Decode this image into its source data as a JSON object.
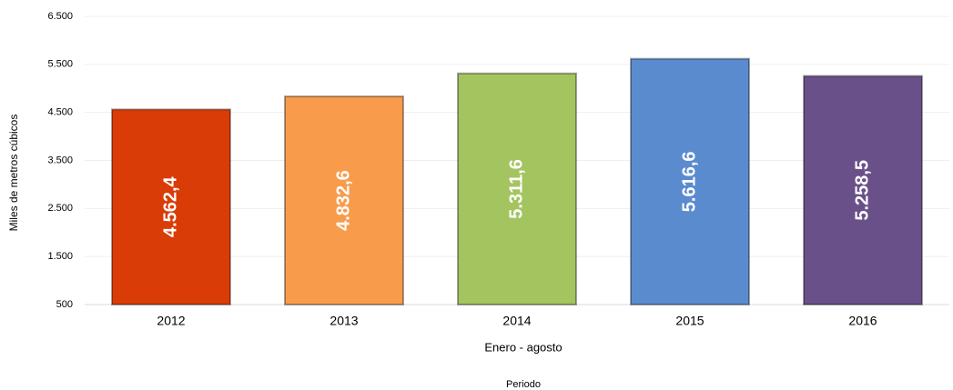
{
  "chart_data": {
    "type": "bar",
    "x_label": "Enero - agosto",
    "x_label2": "Periodo",
    "y_label": "Miles de metros cúbicos",
    "categories": [
      "2012",
      "2013",
      "2014",
      "2015",
      "2016"
    ],
    "values": [
      4562.4,
      4832.6,
      5311.6,
      5616.6,
      5258.5
    ],
    "value_labels": [
      "4.562,4",
      "4.832,6",
      "5.311,6",
      "5.616,6",
      "5.258,5"
    ],
    "colors": [
      "#d93c06",
      "#f89c4c",
      "#a3c45f",
      "#5b8bcf",
      "#6a5089"
    ],
    "ylim": [
      500,
      6500
    ],
    "yticks": [
      {
        "value": 500,
        "label": "500"
      },
      {
        "value": 1500,
        "label": "1.500"
      },
      {
        "value": 2500,
        "label": "2.500"
      },
      {
        "value": 3500,
        "label": "3.500"
      },
      {
        "value": 4500,
        "label": "4.500"
      },
      {
        "value": 5500,
        "label": "5.500"
      },
      {
        "value": 6500,
        "label": "6.500"
      }
    ],
    "grid": true
  }
}
